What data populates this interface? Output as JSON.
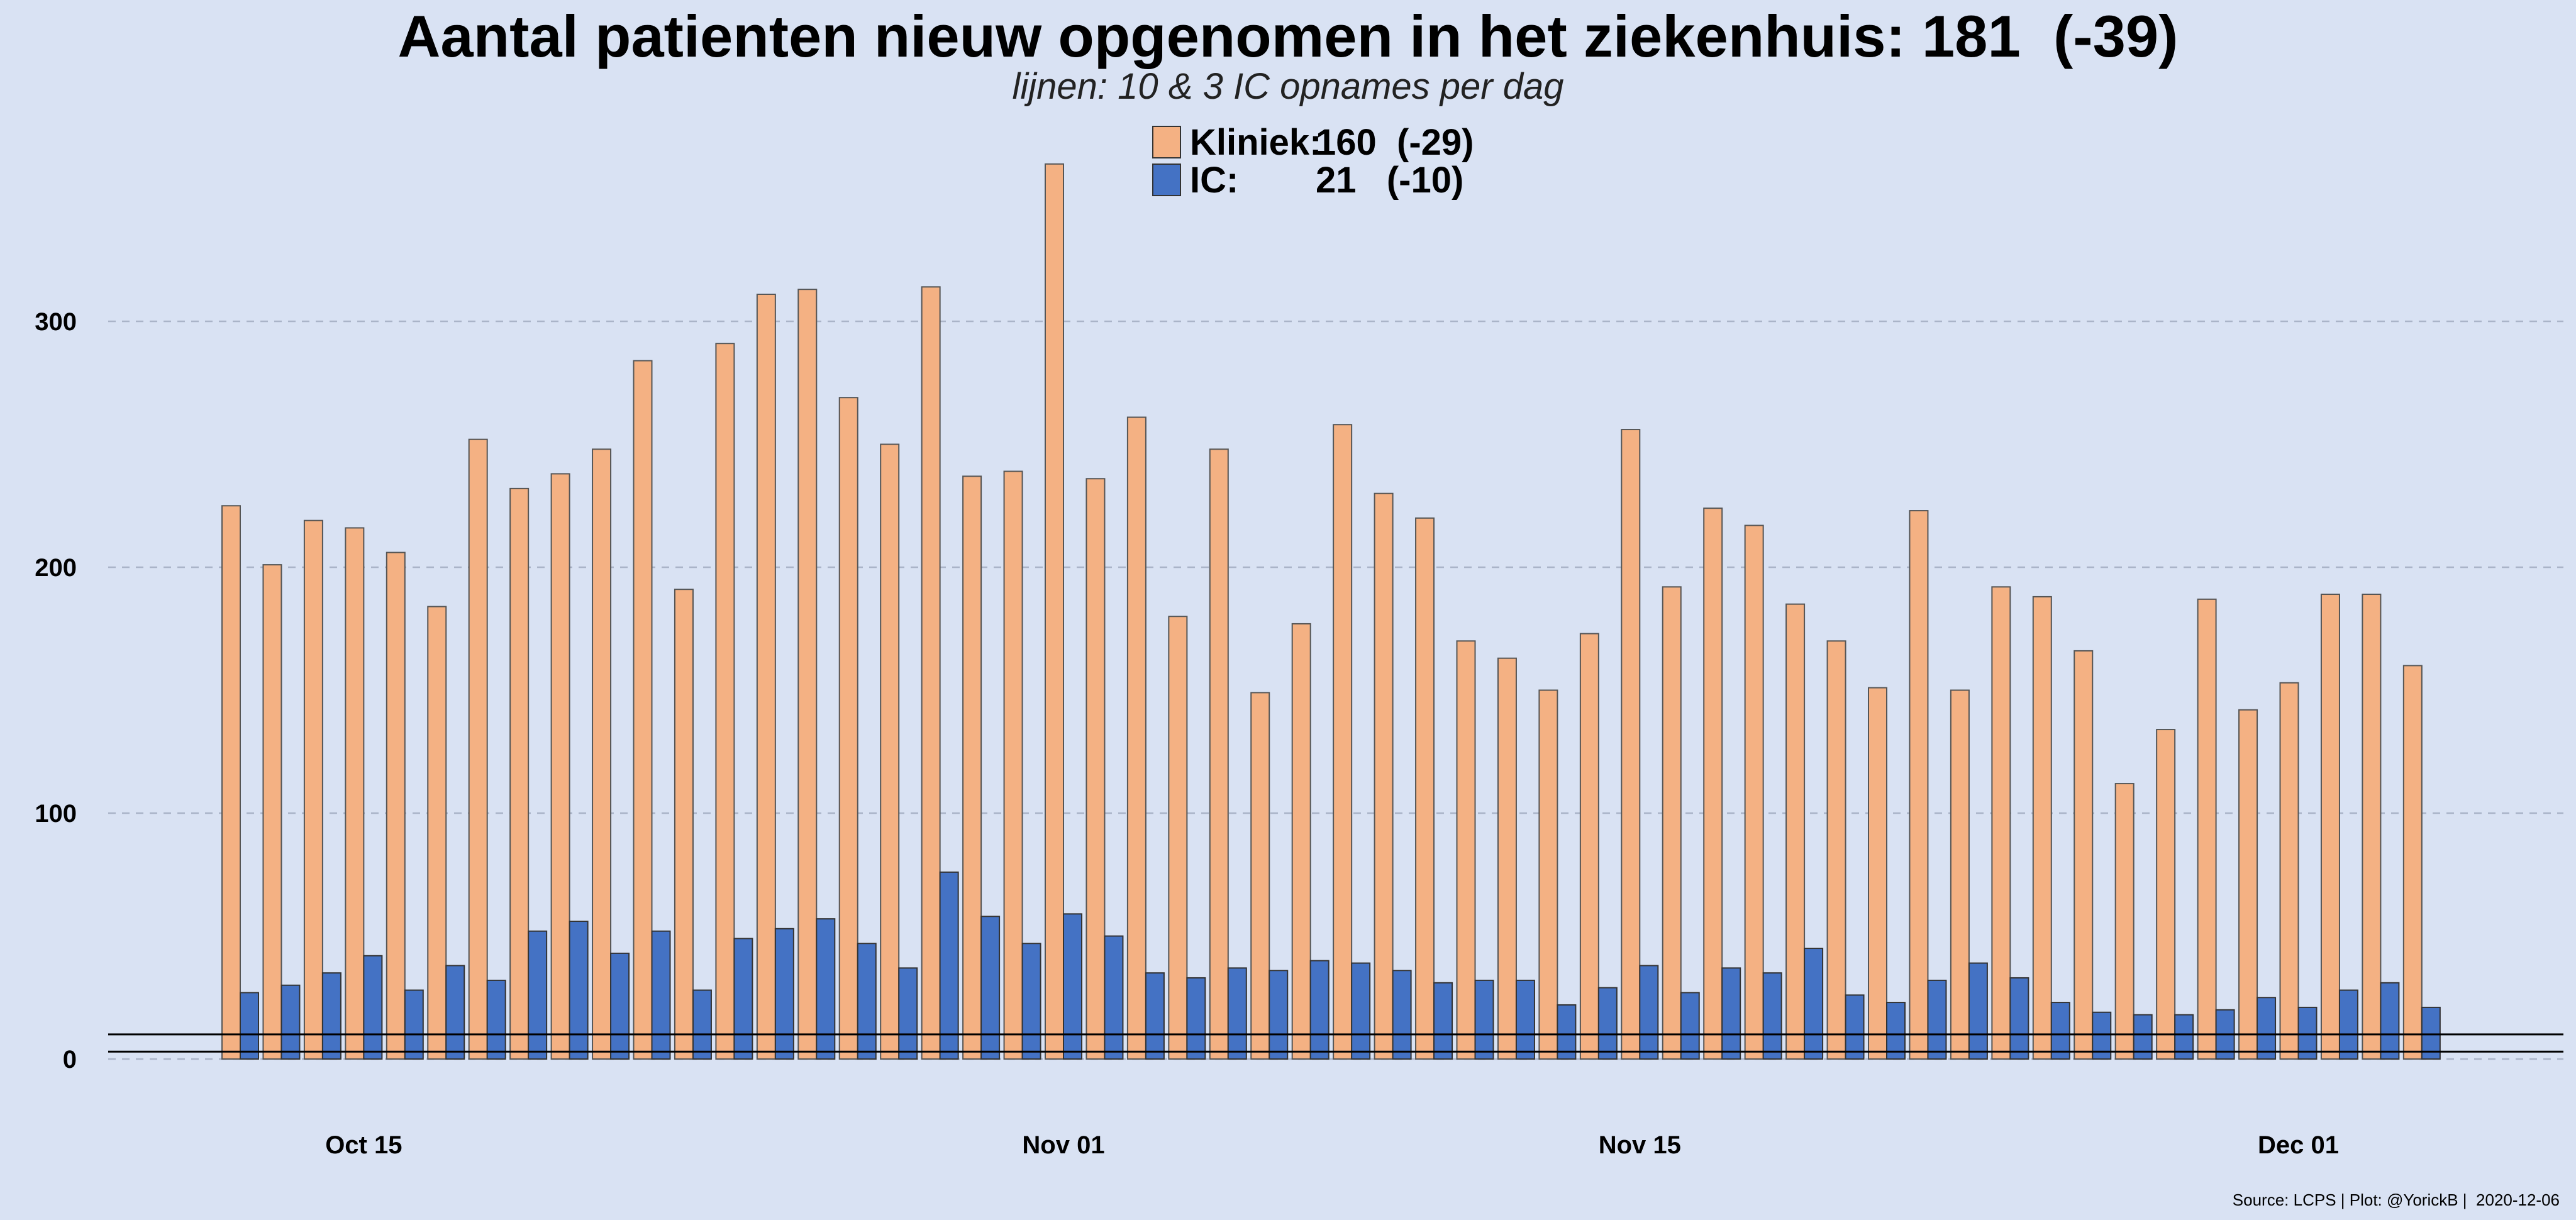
{
  "chart_data": {
    "type": "bar",
    "title": "Aantal patienten nieuw opgenomen in het ziekenhuis: 181  (-39)",
    "subtitle": "lijnen: 10 & 3 IC opnames per dag",
    "legend": {
      "placement": "top-center",
      "entries": [
        {
          "label": "Kliniek:",
          "value": "160  (-29)",
          "color": "#f4b183"
        },
        {
          "label": "IC:",
          "value": "21   (-10)",
          "color": "#4472c4"
        }
      ]
    },
    "x_start": "2020-10-12",
    "x_end": "2020-12-05",
    "x_tick_labels": [
      {
        "label": "Oct 15",
        "date": "2020-10-15"
      },
      {
        "label": "Nov 01",
        "date": "2020-11-01"
      },
      {
        "label": "Nov 15",
        "date": "2020-11-15"
      },
      {
        "label": "Dec 01",
        "date": "2020-12-01"
      }
    ],
    "y_ticks": [
      0,
      100,
      200,
      300
    ],
    "ylim": [
      0,
      370
    ],
    "grid": true,
    "reference_lines": [
      10,
      3
    ],
    "series": [
      {
        "name": "Kliniek",
        "color": "#f4b183",
        "values": [
          225,
          201,
          219,
          216,
          206,
          184,
          252,
          232,
          238,
          248,
          284,
          191,
          291,
          311,
          313,
          269,
          250,
          314,
          237,
          239,
          364,
          236,
          261,
          180,
          248,
          149,
          177,
          258,
          230,
          220,
          170,
          163,
          150,
          173,
          256,
          192,
          224,
          217,
          185,
          170,
          151,
          223,
          150,
          192,
          188,
          166,
          112,
          134,
          187,
          142,
          153,
          189,
          189,
          160
        ]
      },
      {
        "name": "IC",
        "color": "#4472c4",
        "values": [
          27,
          30,
          35,
          42,
          28,
          38,
          32,
          52,
          56,
          43,
          52,
          28,
          49,
          53,
          57,
          47,
          37,
          76,
          58,
          47,
          59,
          50,
          35,
          33,
          37,
          36,
          40,
          39,
          36,
          31,
          32,
          32,
          22,
          29,
          38,
          27,
          37,
          35,
          45,
          26,
          23,
          32,
          39,
          33,
          23,
          19,
          18,
          18,
          20,
          25,
          21,
          28,
          31,
          21
        ]
      }
    ]
  },
  "source": "Source: LCPS | Plot: @YorickB |  2020-12-06"
}
